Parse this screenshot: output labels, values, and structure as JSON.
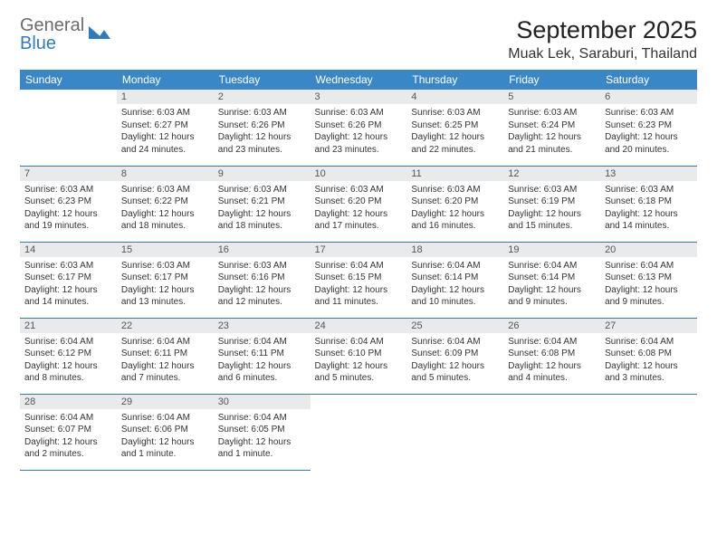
{
  "logo": {
    "line1": "General",
    "line2": "Blue",
    "color_general": "#6b6b6b",
    "color_blue": "#2e7cc0"
  },
  "title": "September 2025",
  "location": "Muak Lek, Saraburi, Thailand",
  "header_bg": "#3a87c8",
  "header_fg": "#ffffff",
  "daynum_bg": "#e9eaeb",
  "border_color": "#2e7cc0",
  "day_headers": [
    "Sunday",
    "Monday",
    "Tuesday",
    "Wednesday",
    "Thursday",
    "Friday",
    "Saturday"
  ],
  "weeks": [
    [
      null,
      {
        "n": "1",
        "sr": "Sunrise: 6:03 AM",
        "ss": "Sunset: 6:27 PM",
        "d1": "Daylight: 12 hours",
        "d2": "and 24 minutes."
      },
      {
        "n": "2",
        "sr": "Sunrise: 6:03 AM",
        "ss": "Sunset: 6:26 PM",
        "d1": "Daylight: 12 hours",
        "d2": "and 23 minutes."
      },
      {
        "n": "3",
        "sr": "Sunrise: 6:03 AM",
        "ss": "Sunset: 6:26 PM",
        "d1": "Daylight: 12 hours",
        "d2": "and 23 minutes."
      },
      {
        "n": "4",
        "sr": "Sunrise: 6:03 AM",
        "ss": "Sunset: 6:25 PM",
        "d1": "Daylight: 12 hours",
        "d2": "and 22 minutes."
      },
      {
        "n": "5",
        "sr": "Sunrise: 6:03 AM",
        "ss": "Sunset: 6:24 PM",
        "d1": "Daylight: 12 hours",
        "d2": "and 21 minutes."
      },
      {
        "n": "6",
        "sr": "Sunrise: 6:03 AM",
        "ss": "Sunset: 6:23 PM",
        "d1": "Daylight: 12 hours",
        "d2": "and 20 minutes."
      }
    ],
    [
      {
        "n": "7",
        "sr": "Sunrise: 6:03 AM",
        "ss": "Sunset: 6:23 PM",
        "d1": "Daylight: 12 hours",
        "d2": "and 19 minutes."
      },
      {
        "n": "8",
        "sr": "Sunrise: 6:03 AM",
        "ss": "Sunset: 6:22 PM",
        "d1": "Daylight: 12 hours",
        "d2": "and 18 minutes."
      },
      {
        "n": "9",
        "sr": "Sunrise: 6:03 AM",
        "ss": "Sunset: 6:21 PM",
        "d1": "Daylight: 12 hours",
        "d2": "and 18 minutes."
      },
      {
        "n": "10",
        "sr": "Sunrise: 6:03 AM",
        "ss": "Sunset: 6:20 PM",
        "d1": "Daylight: 12 hours",
        "d2": "and 17 minutes."
      },
      {
        "n": "11",
        "sr": "Sunrise: 6:03 AM",
        "ss": "Sunset: 6:20 PM",
        "d1": "Daylight: 12 hours",
        "d2": "and 16 minutes."
      },
      {
        "n": "12",
        "sr": "Sunrise: 6:03 AM",
        "ss": "Sunset: 6:19 PM",
        "d1": "Daylight: 12 hours",
        "d2": "and 15 minutes."
      },
      {
        "n": "13",
        "sr": "Sunrise: 6:03 AM",
        "ss": "Sunset: 6:18 PM",
        "d1": "Daylight: 12 hours",
        "d2": "and 14 minutes."
      }
    ],
    [
      {
        "n": "14",
        "sr": "Sunrise: 6:03 AM",
        "ss": "Sunset: 6:17 PM",
        "d1": "Daylight: 12 hours",
        "d2": "and 14 minutes."
      },
      {
        "n": "15",
        "sr": "Sunrise: 6:03 AM",
        "ss": "Sunset: 6:17 PM",
        "d1": "Daylight: 12 hours",
        "d2": "and 13 minutes."
      },
      {
        "n": "16",
        "sr": "Sunrise: 6:03 AM",
        "ss": "Sunset: 6:16 PM",
        "d1": "Daylight: 12 hours",
        "d2": "and 12 minutes."
      },
      {
        "n": "17",
        "sr": "Sunrise: 6:04 AM",
        "ss": "Sunset: 6:15 PM",
        "d1": "Daylight: 12 hours",
        "d2": "and 11 minutes."
      },
      {
        "n": "18",
        "sr": "Sunrise: 6:04 AM",
        "ss": "Sunset: 6:14 PM",
        "d1": "Daylight: 12 hours",
        "d2": "and 10 minutes."
      },
      {
        "n": "19",
        "sr": "Sunrise: 6:04 AM",
        "ss": "Sunset: 6:14 PM",
        "d1": "Daylight: 12 hours",
        "d2": "and 9 minutes."
      },
      {
        "n": "20",
        "sr": "Sunrise: 6:04 AM",
        "ss": "Sunset: 6:13 PM",
        "d1": "Daylight: 12 hours",
        "d2": "and 9 minutes."
      }
    ],
    [
      {
        "n": "21",
        "sr": "Sunrise: 6:04 AM",
        "ss": "Sunset: 6:12 PM",
        "d1": "Daylight: 12 hours",
        "d2": "and 8 minutes."
      },
      {
        "n": "22",
        "sr": "Sunrise: 6:04 AM",
        "ss": "Sunset: 6:11 PM",
        "d1": "Daylight: 12 hours",
        "d2": "and 7 minutes."
      },
      {
        "n": "23",
        "sr": "Sunrise: 6:04 AM",
        "ss": "Sunset: 6:11 PM",
        "d1": "Daylight: 12 hours",
        "d2": "and 6 minutes."
      },
      {
        "n": "24",
        "sr": "Sunrise: 6:04 AM",
        "ss": "Sunset: 6:10 PM",
        "d1": "Daylight: 12 hours",
        "d2": "and 5 minutes."
      },
      {
        "n": "25",
        "sr": "Sunrise: 6:04 AM",
        "ss": "Sunset: 6:09 PM",
        "d1": "Daylight: 12 hours",
        "d2": "and 5 minutes."
      },
      {
        "n": "26",
        "sr": "Sunrise: 6:04 AM",
        "ss": "Sunset: 6:08 PM",
        "d1": "Daylight: 12 hours",
        "d2": "and 4 minutes."
      },
      {
        "n": "27",
        "sr": "Sunrise: 6:04 AM",
        "ss": "Sunset: 6:08 PM",
        "d1": "Daylight: 12 hours",
        "d2": "and 3 minutes."
      }
    ],
    [
      {
        "n": "28",
        "sr": "Sunrise: 6:04 AM",
        "ss": "Sunset: 6:07 PM",
        "d1": "Daylight: 12 hours",
        "d2": "and 2 minutes."
      },
      {
        "n": "29",
        "sr": "Sunrise: 6:04 AM",
        "ss": "Sunset: 6:06 PM",
        "d1": "Daylight: 12 hours",
        "d2": "and 1 minute."
      },
      {
        "n": "30",
        "sr": "Sunrise: 6:04 AM",
        "ss": "Sunset: 6:05 PM",
        "d1": "Daylight: 12 hours",
        "d2": "and 1 minute."
      },
      null,
      null,
      null,
      null
    ]
  ]
}
